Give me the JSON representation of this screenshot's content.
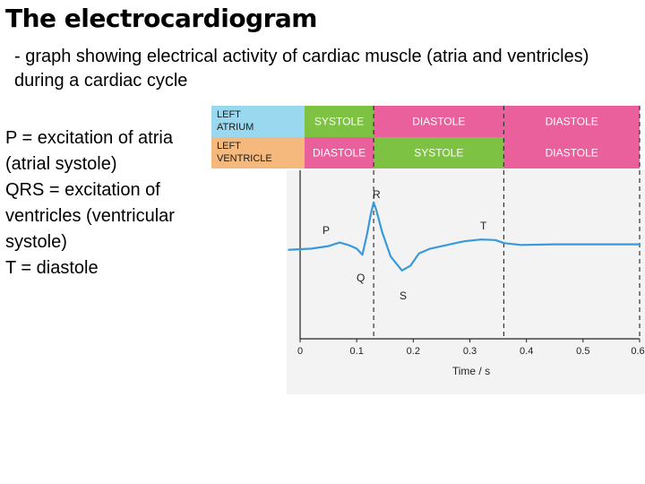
{
  "slide": {
    "title": "The electrocardiogram",
    "subtitle": "- graph showing electrical activity of cardiac muscle (atria and ventricles) during a cardiac cycle",
    "notes": [
      "P = excitation of atria",
      "(atrial systole)",
      "QRS = excitation of",
      "ventricles (ventricular",
      "systole)",
      "T = diastole"
    ]
  },
  "diagram": {
    "rows": [
      {
        "label_lines": [
          "LEFT",
          "ATRIUM"
        ],
        "label_color": "#9ad8f0",
        "cells": [
          {
            "text": "SYSTOLE",
            "color": "#7dc242"
          },
          {
            "text": "DIASTOLE",
            "color": "#e9609c"
          },
          {
            "text": "DIASTOLE",
            "color": "#e9609c"
          }
        ]
      },
      {
        "label_lines": [
          "LEFT",
          "VENTRICLE"
        ],
        "label_color": "#f5b97d",
        "cells": [
          {
            "text": "DIASTOLE",
            "color": "#e9609c"
          },
          {
            "text": "SYSTOLE",
            "color": "#7dc242"
          },
          {
            "text": "DIASTOLE",
            "color": "#e9609c"
          }
        ]
      }
    ],
    "phase_boundaries_s": [
      0.13,
      0.36,
      0.6
    ],
    "x_ticks": [
      "0",
      "0.1",
      "0.2",
      "0.3",
      "0.4",
      "0.5",
      "0.6"
    ],
    "x_axis_label": "Time / s",
    "xlim": [
      0,
      0.6
    ],
    "wave_labels": [
      "P",
      "Q",
      "R",
      "S",
      "T"
    ],
    "trace_color": "#3a9ad9",
    "trace_points": [
      [
        -0.02,
        -0.04
      ],
      [
        0.02,
        -0.02
      ],
      [
        0.05,
        0.02
      ],
      [
        0.07,
        0.08
      ],
      [
        0.085,
        0.04
      ],
      [
        0.1,
        -0.02
      ],
      [
        0.11,
        -0.12
      ],
      [
        0.118,
        0.2
      ],
      [
        0.125,
        0.55
      ],
      [
        0.13,
        0.74
      ],
      [
        0.135,
        0.6
      ],
      [
        0.145,
        0.25
      ],
      [
        0.16,
        -0.15
      ],
      [
        0.18,
        -0.38
      ],
      [
        0.195,
        -0.3
      ],
      [
        0.21,
        -0.1
      ],
      [
        0.23,
        -0.02
      ],
      [
        0.26,
        0.04
      ],
      [
        0.29,
        0.1
      ],
      [
        0.32,
        0.13
      ],
      [
        0.345,
        0.12
      ],
      [
        0.36,
        0.07
      ],
      [
        0.39,
        0.04
      ],
      [
        0.45,
        0.05
      ],
      [
        0.55,
        0.05
      ],
      [
        0.6,
        0.05
      ]
    ]
  }
}
